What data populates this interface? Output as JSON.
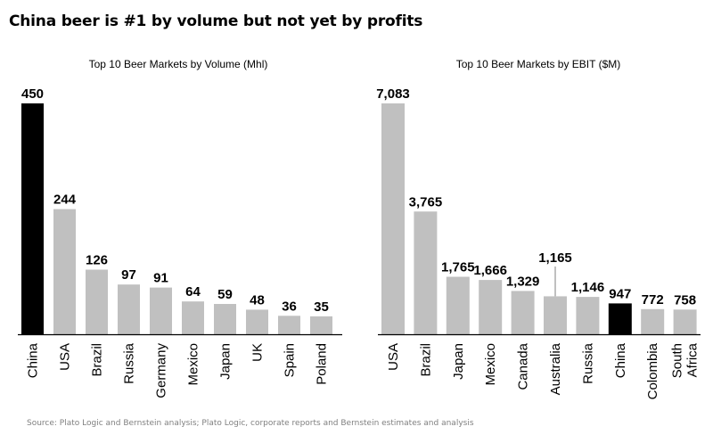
{
  "page": {
    "title": "China beer is #1 by volume but not yet by profits",
    "source": "Source: Plato Logic and Bernstein analysis; Plato Logic, corporate reports and Bernstein estimates and analysis"
  },
  "colors": {
    "highlight": "#000000",
    "bar": "#c0c0c0",
    "axis": "#000000"
  },
  "chart_data": [
    {
      "type": "bar",
      "title": "Top 10 Beer Markets by Volume (Mhl)",
      "categories": [
        "China",
        "USA",
        "Brazil",
        "Russia",
        "Germany",
        "Mexico",
        "Japan",
        "UK",
        "Spain",
        "Poland"
      ],
      "values": [
        450,
        244,
        126,
        97,
        91,
        64,
        59,
        48,
        36,
        35
      ],
      "value_labels": [
        "450",
        "244",
        "126",
        "97",
        "91",
        "64",
        "59",
        "48",
        "36",
        "35"
      ],
      "highlight": "China",
      "ylim": [
        0,
        450
      ],
      "grid": false,
      "legend": "none"
    },
    {
      "type": "bar",
      "title": "Top 10 Beer Markets by EBIT ($M)",
      "categories": [
        "USA",
        "Brazil",
        "Japan",
        "Mexico",
        "Canada",
        "Australia",
        "Russia",
        "China",
        "Colombia",
        "South Africa"
      ],
      "values": [
        7083,
        3765,
        1765,
        1666,
        1329,
        1165,
        1146,
        947,
        772,
        758
      ],
      "value_labels": [
        "7,083",
        "3,765",
        "1,765",
        "1,666",
        "1,329",
        "1,165",
        "1,146",
        "947",
        "772",
        "758"
      ],
      "highlight": "China",
      "ylim": [
        0,
        7083
      ],
      "grid": false,
      "legend": "none"
    }
  ]
}
